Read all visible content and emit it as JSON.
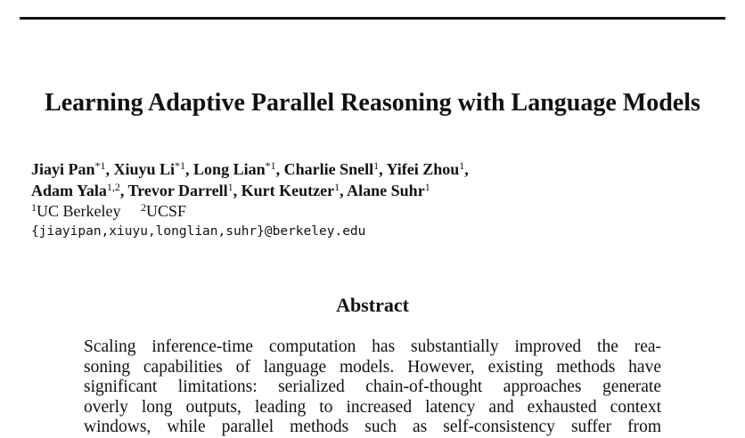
{
  "header": {
    "title": "Learning Adaptive Parallel Reasoning with Language Models"
  },
  "authors": [
    [
      {
        "name": "Jiayi Pan",
        "sup": "*1",
        "sep": ","
      },
      {
        "name": "Xiuyu Li",
        "sup": "*1",
        "sep": ","
      },
      {
        "name": "Long Lian",
        "sup": "*1",
        "sep": ","
      },
      {
        "name": "Charlie Snell",
        "sup": "1",
        "sep": ","
      },
      {
        "name": "Yifei Zhou",
        "sup": "1",
        "sep": ","
      }
    ],
    [
      {
        "name": "Adam Yala",
        "sup": "1,2",
        "sep": ","
      },
      {
        "name": "Trevor Darrell",
        "sup": "1",
        "sep": ","
      },
      {
        "name": "Kurt Keutzer",
        "sup": "1",
        "sep": ","
      },
      {
        "name": "Alane Suhr",
        "sup": "1"
      }
    ]
  ],
  "affiliations": [
    {
      "sup": "1",
      "name": "UC Berkeley"
    },
    {
      "sup": "2",
      "name": "UCSF"
    }
  ],
  "email": "{jiayipan,xiuyu,longlian,suhr}@berkeley.edu",
  "abstract": {
    "heading": "Abstract",
    "lines": [
      "Scaling inference-time computation has substantially improved the rea-",
      "soning capabilities of language models. However, existing methods have",
      "significant limitations: serialized chain-of-thought approaches generate",
      "overly long outputs, leading to increased latency and exhausted context",
      "windows, while parallel methods such as self-consistency suffer from"
    ]
  }
}
